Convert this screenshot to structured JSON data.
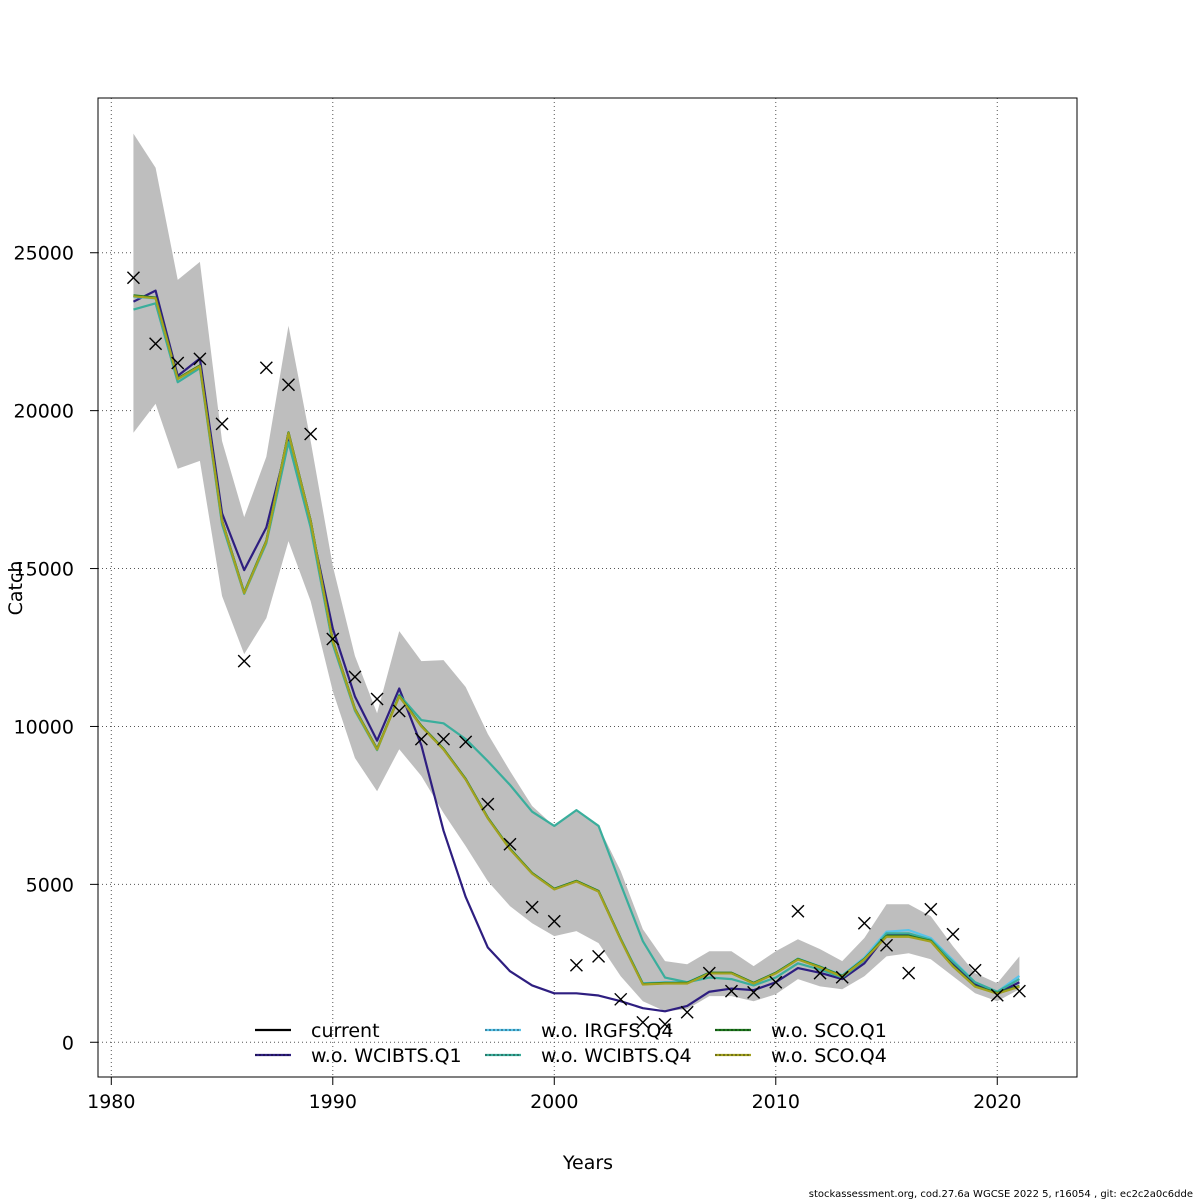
{
  "chart_data": {
    "type": "line",
    "title": "",
    "xlabel": "Years",
    "ylabel": "Catch",
    "xlim": [
      1979.4,
      2023.6
    ],
    "ylim": [
      -1100,
      29900
    ],
    "xticks": [
      1980,
      1990,
      2000,
      2010,
      2020
    ],
    "yticks": [
      0,
      5000,
      10000,
      15000,
      20000,
      25000
    ],
    "grid": true,
    "legend_position": "bottom-center",
    "x": [
      1981,
      1982,
      1983,
      1984,
      1985,
      1986,
      1987,
      1988,
      1989,
      1990,
      1991,
      1992,
      1993,
      1994,
      1995,
      1996,
      1997,
      1998,
      1999,
      2000,
      2001,
      2002,
      2003,
      2004,
      2005,
      2006,
      2007,
      2008,
      2009,
      2010,
      2011,
      2012,
      2013,
      2014,
      2015,
      2016,
      2017,
      2018,
      2019,
      2020,
      2021
    ],
    "confidence_band": {
      "color": "#bebebe",
      "upper": [
        28770,
        27690,
        24140,
        24710,
        19040,
        16630,
        18540,
        22690,
        19040,
        15080,
        12230,
        10420,
        13020,
        12070,
        12100,
        11250,
        9760,
        8590,
        7480,
        6840,
        7380,
        6840,
        5420,
        3580,
        2570,
        2470,
        2880,
        2880,
        2410,
        2880,
        3260,
        2950,
        2570,
        3300,
        4370,
        4370,
        3990,
        3040,
        2190,
        1870,
        2720
      ],
      "lower": [
        19300,
        20220,
        18160,
        18410,
        14130,
        12290,
        13430,
        15870,
        13970,
        11120,
        9000,
        7950,
        9280,
        8430,
        7260,
        6210,
        5100,
        4310,
        3770,
        3360,
        3520,
        3140,
        2090,
        1300,
        980,
        1050,
        1460,
        1460,
        1300,
        1520,
        2000,
        1770,
        1680,
        2090,
        2720,
        2820,
        2630,
        2090,
        1550,
        1300,
        1680
      ]
    },
    "observed": {
      "marker": "x",
      "values": [
        24210,
        22120,
        21510,
        21640,
        19580,
        12070,
        21360,
        20820,
        19260,
        12770,
        11570,
        10870,
        10490,
        9600,
        9600,
        9510,
        7540,
        6270,
        4280,
        3830,
        2440,
        2720,
        1360,
        630,
        570,
        950,
        2190,
        1620,
        1580,
        1900,
        4150,
        2190,
        2060,
        3770,
        3070,
        2190,
        4210,
        3420,
        2280,
        1490,
        1620
      ]
    },
    "series": [
      {
        "name": "current",
        "color": "#000000",
        "dashed": false,
        "values": [
          23640,
          23570,
          21010,
          21420,
          16510,
          14230,
          15870,
          19300,
          16510,
          12710,
          10550,
          9280,
          10960,
          10010,
          9280,
          8330,
          7100,
          6120,
          5350,
          4850,
          5100,
          4780,
          3260,
          1840,
          1870,
          1870,
          2190,
          2190,
          1870,
          2190,
          2630,
          2380,
          2090,
          2630,
          3360,
          3360,
          3200,
          2410,
          1770,
          1550,
          1770
        ]
      },
      {
        "name": "w.o. WCIBTS.Q1",
        "color": "#2e1e80",
        "dashed": true,
        "values": [
          23450,
          23800,
          21100,
          21650,
          16750,
          14950,
          16300,
          19100,
          16400,
          13100,
          10950,
          9550,
          11200,
          9400,
          6700,
          4600,
          3000,
          2250,
          1800,
          1550,
          1550,
          1480,
          1300,
          1080,
          980,
          1150,
          1600,
          1700,
          1650,
          1900,
          2350,
          2200,
          2000,
          2500,
          3400,
          3400,
          3200,
          2500,
          1850,
          1550,
          1900
        ]
      },
      {
        "name": "w.o. IRGFS.Q4",
        "color": "#56c3ea",
        "dashed": true,
        "values": [
          23600,
          23550,
          21000,
          21400,
          16500,
          14250,
          15880,
          19280,
          16500,
          12700,
          10560,
          9290,
          10950,
          10000,
          9290,
          8340,
          7110,
          6130,
          5360,
          4860,
          5110,
          4790,
          3280,
          1870,
          1900,
          1900,
          2200,
          2180,
          1880,
          2200,
          2650,
          2400,
          2120,
          2680,
          3500,
          3550,
          3300,
          2600,
          1900,
          1600,
          2100
        ]
      },
      {
        "name": "w.o. WCIBTS.Q4",
        "color": "#3aae9c",
        "dashed": true,
        "values": [
          23200,
          23400,
          20900,
          21350,
          16400,
          14200,
          15800,
          19000,
          16300,
          12600,
          10500,
          9250,
          11000,
          10200,
          10100,
          9600,
          8900,
          8150,
          7300,
          6850,
          7350,
          6850,
          5000,
          3200,
          2050,
          1900,
          2050,
          2000,
          1800,
          2050,
          2500,
          2300,
          2050,
          2600,
          3450,
          3450,
          3250,
          2550,
          1900,
          1600,
          2000
        ]
      },
      {
        "name": "w.o. SCO.Q1",
        "color": "#1e7a1e",
        "dashed": true,
        "values": [
          23650,
          23580,
          21020,
          21430,
          16520,
          14240,
          15880,
          19310,
          16520,
          12720,
          10560,
          9290,
          10970,
          10020,
          9290,
          8340,
          7110,
          6130,
          5360,
          4860,
          5110,
          4790,
          3270,
          1850,
          1880,
          1880,
          2200,
          2200,
          1880,
          2200,
          2640,
          2390,
          2100,
          2640,
          3370,
          3370,
          3210,
          2420,
          1780,
          1560,
          1780
        ]
      },
      {
        "name": "w.o. SCO.Q4",
        "color": "#a3a21f",
        "dashed": true,
        "values": [
          23620,
          23560,
          21000,
          21410,
          16500,
          14220,
          15860,
          19290,
          16500,
          12700,
          10540,
          9270,
          10950,
          10000,
          9270,
          8320,
          7090,
          6110,
          5340,
          4840,
          5090,
          4770,
          3250,
          1830,
          1860,
          1860,
          2180,
          2180,
          1860,
          2180,
          2620,
          2370,
          2080,
          2620,
          3340,
          3340,
          3190,
          2400,
          1760,
          1540,
          1760
        ]
      }
    ]
  },
  "footer": "stockassessment.org, cod.27.6a  WGCSE  2022  5, r16054 , git: ec2c2a0c6dde"
}
